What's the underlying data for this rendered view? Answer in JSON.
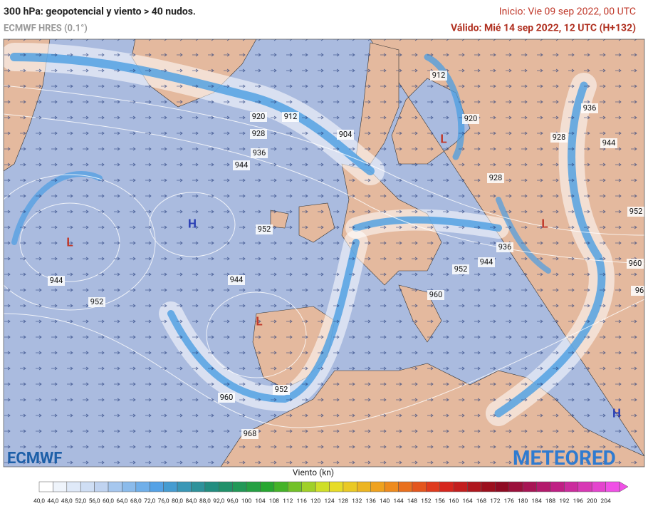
{
  "header": {
    "title": "300 hPa: geopotencial y viento > 40 nudos.",
    "model": "ECMWF HRES (0.1°)",
    "init": "Inicio: Vie 09 sep 2022, 00 UTC",
    "valid": "Válido: Mié 14 sep 2022, 12 UTC (H+132)"
  },
  "map": {
    "contour_labels": [
      "912",
      "920",
      "912",
      "920",
      "904",
      "928",
      "936",
      "944",
      "928",
      "936",
      "944",
      "928",
      "952",
      "952",
      "936",
      "944",
      "952",
      "960",
      "944",
      "944",
      "960",
      "952",
      "952",
      "960",
      "968",
      "96"
    ],
    "pressure_centers": [
      "L",
      "H",
      "L",
      "L",
      "L",
      "H"
    ]
  },
  "logos": {
    "ecmwf": "ECMWF",
    "meteored": "METEORED"
  },
  "colorbar": {
    "title": "Viento (kn)",
    "labels": [
      "40,0",
      "44,0",
      "48,0",
      "52,0",
      "56,0",
      "60,0",
      "64,0",
      "68,0",
      "72,0",
      "76,0",
      "80,0",
      "84,0",
      "88,0",
      "92,0",
      "96,0",
      "100",
      "104",
      "108",
      "112",
      "116",
      "120",
      "124",
      "128",
      "132",
      "136",
      "140",
      "144",
      "148",
      "152",
      "156",
      "160",
      "164",
      "168",
      "172",
      "176",
      "180",
      "184",
      "188",
      "192",
      "196",
      "200",
      "204"
    ]
  }
}
